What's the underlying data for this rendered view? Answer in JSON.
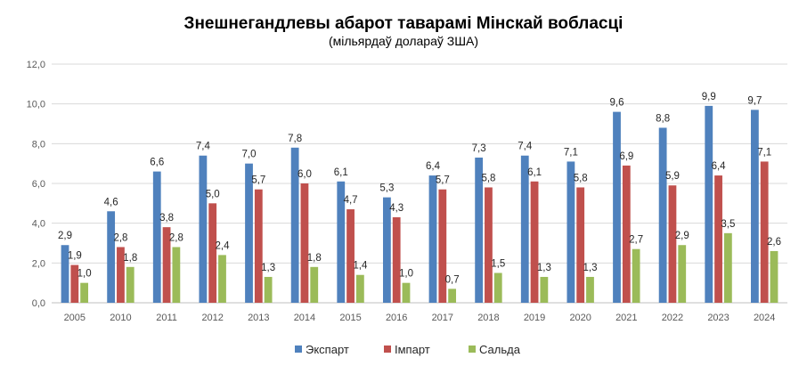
{
  "chart_data": {
    "type": "bar",
    "title": "Знешнегандлевы абарот таварамі Мінскай вобласці",
    "subtitle": "(мільярдаў долараў ЗША)",
    "categories": [
      "2005",
      "2010",
      "2011",
      "2012",
      "2013",
      "2014",
      "2015",
      "2016",
      "2017",
      "2018",
      "2019",
      "2020",
      "2021",
      "2022",
      "2023",
      "2024"
    ],
    "series": [
      {
        "name": "Экспарт",
        "color": "#4f81bd",
        "values": [
          2.9,
          4.6,
          6.6,
          7.4,
          7.0,
          7.8,
          6.1,
          5.3,
          6.4,
          7.3,
          7.4,
          7.1,
          9.6,
          8.8,
          9.9,
          9.7
        ],
        "labels": [
          "2,9",
          "4,6",
          "6,6",
          "7,4",
          "7,0",
          "7,8",
          "6,1",
          "5,3",
          "6,4",
          "7,3",
          "7,4",
          "7,1",
          "9,6",
          "8,8",
          "9,9",
          "9,7"
        ]
      },
      {
        "name": "Імпарт",
        "color": "#c0504d",
        "values": [
          1.9,
          2.8,
          3.8,
          5.0,
          5.7,
          6.0,
          4.7,
          4.3,
          5.7,
          5.8,
          6.1,
          5.8,
          6.9,
          5.9,
          6.4,
          7.1
        ],
        "labels": [
          "1,9",
          "2,8",
          "3,8",
          "5,0",
          "5,7",
          "6,0",
          "4,7",
          "4,3",
          "5,7",
          "5,8",
          "6,1",
          "5,8",
          "6,9",
          "5,9",
          "6,4",
          "7,1"
        ]
      },
      {
        "name": "Сальда",
        "color": "#9bbb59",
        "values": [
          1.0,
          1.8,
          2.8,
          2.4,
          1.3,
          1.8,
          1.4,
          1.0,
          0.7,
          1.5,
          1.3,
          1.3,
          2.7,
          2.9,
          3.5,
          2.6
        ],
        "labels": [
          "1,0",
          "1,8",
          "2,8",
          "2,4",
          "1,3",
          "1,8",
          "1,4",
          "1,0",
          "0,7",
          "1,5",
          "1,3",
          "1,3",
          "2,7",
          "2,9",
          "3,5",
          "2,6"
        ]
      }
    ],
    "ylim": [
      0,
      12
    ],
    "yticks": [
      0,
      2,
      4,
      6,
      8,
      10,
      12
    ],
    "ytick_labels": [
      "0,0",
      "2,0",
      "4,0",
      "6,0",
      "8,0",
      "10,0",
      "12,0"
    ],
    "grid": true,
    "legend_position": "bottom"
  }
}
